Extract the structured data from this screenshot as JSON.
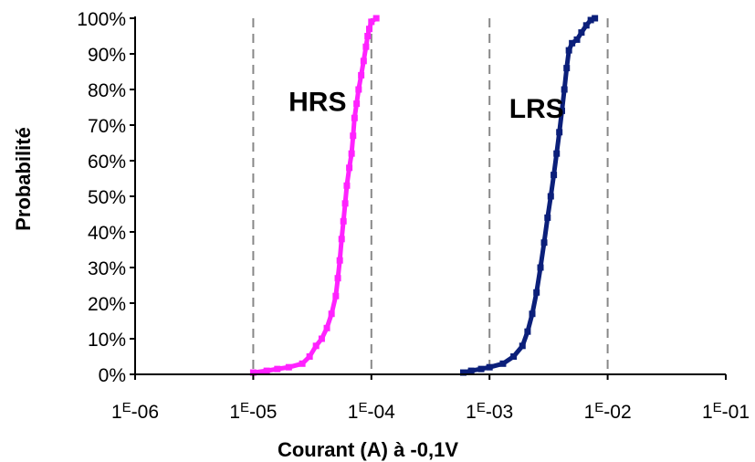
{
  "chart_data": {
    "type": "scatter",
    "xlabel": "Courant (A) à -0,1V",
    "ylabel": "Probabilité",
    "x_scale": "log",
    "xlim": [
      1e-06,
      0.1
    ],
    "ylim": [
      0,
      100
    ],
    "x_tick_labels": [
      {
        "base": "1",
        "sup": "E",
        "rest": "-06"
      },
      {
        "base": "1",
        "sup": "E",
        "rest": "-05"
      },
      {
        "base": "1",
        "sup": "E",
        "rest": "-04"
      },
      {
        "base": "1",
        "sup": "E",
        "rest": "-03"
      },
      {
        "base": "1",
        "sup": "E",
        "rest": "-02"
      },
      {
        "base": "1",
        "sup": "E",
        "rest": "-01"
      }
    ],
    "y_tick_labels": [
      "0%",
      "10%",
      "20%",
      "30%",
      "40%",
      "50%",
      "60%",
      "70%",
      "80%",
      "90%",
      "100%"
    ],
    "grid": "vertical dashed at 1E-05, 1E-04, 1E-03, 1E-02",
    "annotations": [
      {
        "text": "HRS",
        "x": 3.5e-05,
        "y": 74
      },
      {
        "text": "LRS",
        "x": 0.0025,
        "y": 72
      }
    ],
    "series": [
      {
        "color": "#ff22ff",
        "points": [
          [
            1e-05,
            0.5
          ],
          [
            1.3e-05,
            1
          ],
          [
            1.6e-05,
            1.5
          ],
          [
            2e-05,
            2
          ],
          [
            2.6e-05,
            3
          ],
          [
            3e-05,
            5
          ],
          [
            3.4e-05,
            8
          ],
          [
            3.8e-05,
            10
          ],
          [
            4.2e-05,
            13
          ],
          [
            4.6e-05,
            17
          ],
          [
            5e-05,
            22
          ],
          [
            5.2e-05,
            27
          ],
          [
            5.4e-05,
            32
          ],
          [
            5.6e-05,
            38
          ],
          [
            5.8e-05,
            43
          ],
          [
            6e-05,
            48
          ],
          [
            6.2e-05,
            53
          ],
          [
            6.5e-05,
            58
          ],
          [
            6.8e-05,
            62
          ],
          [
            7e-05,
            67
          ],
          [
            7.2e-05,
            72
          ],
          [
            7.5e-05,
            76
          ],
          [
            7.8e-05,
            80
          ],
          [
            8.2e-05,
            84
          ],
          [
            8.6e-05,
            88
          ],
          [
            9e-05,
            92
          ],
          [
            9.3e-05,
            95
          ],
          [
            9.6e-05,
            97
          ],
          [
            0.0001,
            99
          ],
          [
            0.00011,
            100
          ]
        ]
      },
      {
        "color": "#0b1f7a",
        "points": [
          [
            0.0006,
            0.5
          ],
          [
            0.0007,
            1
          ],
          [
            0.00085,
            1.5
          ],
          [
            0.001,
            2
          ],
          [
            0.0013,
            3
          ],
          [
            0.0016,
            5
          ],
          [
            0.0019,
            8
          ],
          [
            0.0021,
            12
          ],
          [
            0.0023,
            17
          ],
          [
            0.0025,
            23
          ],
          [
            0.0027,
            30
          ],
          [
            0.0029,
            37
          ],
          [
            0.0031,
            44
          ],
          [
            0.0033,
            50
          ],
          [
            0.0035,
            56
          ],
          [
            0.0037,
            62
          ],
          [
            0.0039,
            68
          ],
          [
            0.0041,
            74
          ],
          [
            0.0043,
            80
          ],
          [
            0.0045,
            86
          ],
          [
            0.0047,
            91
          ],
          [
            0.005,
            93
          ],
          [
            0.0055,
            94
          ],
          [
            0.006,
            96
          ],
          [
            0.0066,
            98
          ],
          [
            0.0072,
            99.5
          ],
          [
            0.0078,
            100
          ]
        ]
      }
    ]
  }
}
